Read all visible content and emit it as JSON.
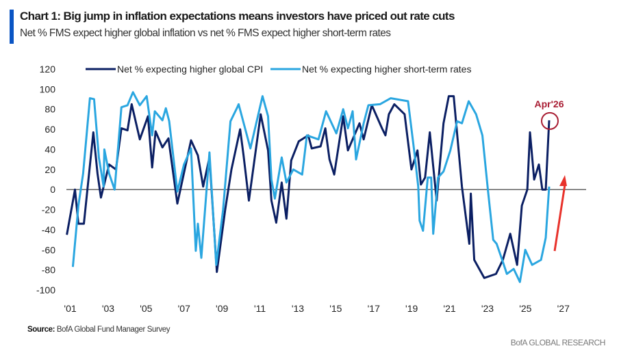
{
  "header": {
    "title": "Chart 1: Big jump in inflation expectations means investors have priced out rate cuts",
    "subtitle": "Net % FMS expect higher global inflation vs net % FMS expect higher short-term rates"
  },
  "footer": {
    "source_label": "Source:",
    "source_text": " BofA Global Fund Manager Survey",
    "brand": "BofA GLOBAL RESEARCH"
  },
  "chart_data": {
    "type": "line",
    "title": "Chart 1: Big jump in inflation expectations means investors have priced out rate cuts",
    "subtitle": "Net % FMS expect higher global inflation vs net % FMS expect higher short-term rates",
    "xlabel": "",
    "ylabel": "",
    "xlim": [
      2000.8,
      2028.2
    ],
    "ylim": [
      -100,
      120
    ],
    "yticks": [
      120,
      100,
      80,
      60,
      40,
      20,
      0,
      -20,
      -40,
      -60,
      -80,
      -100
    ],
    "xticks": [
      {
        "value": 2001,
        "label": "'01"
      },
      {
        "value": 2003,
        "label": "'03"
      },
      {
        "value": 2005,
        "label": "'05"
      },
      {
        "value": 2007,
        "label": "'07"
      },
      {
        "value": 2009,
        "label": "'09"
      },
      {
        "value": 2011,
        "label": "'11"
      },
      {
        "value": 2013,
        "label": "'13"
      },
      {
        "value": 2015,
        "label": "'15"
      },
      {
        "value": 2017,
        "label": "'17"
      },
      {
        "value": 2019,
        "label": "'19"
      },
      {
        "value": 2021,
        "label": "'21"
      },
      {
        "value": 2023,
        "label": "'23"
      },
      {
        "value": 2025,
        "label": "'25"
      },
      {
        "value": 2027,
        "label": "'27"
      }
    ],
    "grid": false,
    "zero_line": true,
    "legend_placement": "top",
    "series": [
      {
        "name": "Net % expecting higher global CPI",
        "color": "#0b1f63",
        "points": [
          [
            2000.82,
            -45
          ],
          [
            2001.25,
            0
          ],
          [
            2001.43,
            -34
          ],
          [
            2001.72,
            -34
          ],
          [
            2002.22,
            57
          ],
          [
            2002.44,
            16
          ],
          [
            2002.62,
            -8
          ],
          [
            2003.05,
            25
          ],
          [
            2003.41,
            20
          ],
          [
            2003.7,
            61
          ],
          [
            2004.02,
            59
          ],
          [
            2004.24,
            85
          ],
          [
            2004.67,
            50
          ],
          [
            2005.1,
            73
          ],
          [
            2005.32,
            22
          ],
          [
            2005.5,
            58
          ],
          [
            2005.86,
            42
          ],
          [
            2006.18,
            51
          ],
          [
            2006.65,
            -14
          ],
          [
            2007.37,
            49
          ],
          [
            2007.73,
            34
          ],
          [
            2008.01,
            3
          ],
          [
            2008.34,
            32
          ],
          [
            2008.73,
            -82
          ],
          [
            2009.17,
            -20
          ],
          [
            2009.5,
            20
          ],
          [
            2009.96,
            60
          ],
          [
            2010.14,
            34
          ],
          [
            2010.42,
            -11
          ],
          [
            2011.04,
            75
          ],
          [
            2011.43,
            39
          ],
          [
            2011.61,
            -11
          ],
          [
            2011.86,
            -33
          ],
          [
            2012.15,
            7
          ],
          [
            2012.4,
            -29
          ],
          [
            2012.65,
            29
          ],
          [
            2013.05,
            48
          ],
          [
            2013.55,
            54
          ],
          [
            2013.73,
            41
          ],
          [
            2014.2,
            43
          ],
          [
            2014.45,
            61
          ],
          [
            2014.67,
            30
          ],
          [
            2014.92,
            15
          ],
          [
            2015.39,
            73
          ],
          [
            2015.64,
            39
          ],
          [
            2016.25,
            66
          ],
          [
            2016.47,
            50
          ],
          [
            2016.9,
            84
          ],
          [
            2017.44,
            61
          ],
          [
            2017.62,
            54
          ],
          [
            2017.8,
            75
          ],
          [
            2018.09,
            85
          ],
          [
            2018.63,
            75
          ],
          [
            2018.99,
            20
          ],
          [
            2019.31,
            39
          ],
          [
            2019.49,
            5
          ],
          [
            2019.71,
            12
          ],
          [
            2019.96,
            57
          ],
          [
            2020.32,
            -11
          ],
          [
            2020.68,
            66
          ],
          [
            2020.96,
            93
          ],
          [
            2021.22,
            93
          ],
          [
            2021.65,
            3
          ],
          [
            2022.04,
            -54
          ],
          [
            2022.12,
            -4
          ],
          [
            2022.3,
            -70
          ],
          [
            2022.83,
            -88
          ],
          [
            2023.45,
            -84
          ],
          [
            2023.81,
            -70
          ],
          [
            2024.2,
            -44
          ],
          [
            2024.56,
            -75
          ],
          [
            2024.81,
            -16
          ],
          [
            2025.1,
            0
          ],
          [
            2025.24,
            57
          ],
          [
            2025.46,
            10
          ],
          [
            2025.71,
            25
          ],
          [
            2025.89,
            0
          ],
          [
            2026.07,
            0
          ],
          [
            2026.25,
            69
          ]
        ]
      },
      {
        "name": "Net % expecting higher short-term rates",
        "color": "#2aa6e0",
        "points": [
          [
            2001.14,
            -77
          ],
          [
            2001.43,
            -16
          ],
          [
            2001.68,
            16
          ],
          [
            2002.04,
            91
          ],
          [
            2002.26,
            90
          ],
          [
            2002.51,
            32
          ],
          [
            2002.76,
            3
          ],
          [
            2002.8,
            40
          ],
          [
            2003.05,
            16
          ],
          [
            2003.34,
            0
          ],
          [
            2003.7,
            82
          ],
          [
            2004.02,
            84
          ],
          [
            2004.31,
            97
          ],
          [
            2004.67,
            84
          ],
          [
            2005.03,
            93
          ],
          [
            2005.32,
            54
          ],
          [
            2005.46,
            78
          ],
          [
            2005.86,
            69
          ],
          [
            2006.04,
            81
          ],
          [
            2006.22,
            68
          ],
          [
            2006.65,
            -2
          ],
          [
            2007.0,
            25
          ],
          [
            2007.37,
            41
          ],
          [
            2007.62,
            -61
          ],
          [
            2007.73,
            -34
          ],
          [
            2007.91,
            -68
          ],
          [
            2008.34,
            37
          ],
          [
            2008.7,
            -75
          ],
          [
            2009.06,
            -20
          ],
          [
            2009.45,
            68
          ],
          [
            2009.81,
            82
          ],
          [
            2009.88,
            85
          ],
          [
            2010.5,
            41
          ],
          [
            2011.14,
            93
          ],
          [
            2011.43,
            73
          ],
          [
            2011.61,
            10
          ],
          [
            2011.79,
            -9
          ],
          [
            2012.15,
            32
          ],
          [
            2012.4,
            7
          ],
          [
            2012.76,
            20
          ],
          [
            2013.23,
            15
          ],
          [
            2013.48,
            54
          ],
          [
            2014.09,
            50
          ],
          [
            2014.49,
            78
          ],
          [
            2015.03,
            56
          ],
          [
            2015.39,
            80
          ],
          [
            2015.64,
            61
          ],
          [
            2015.89,
            78
          ],
          [
            2016.07,
            30
          ],
          [
            2016.47,
            66
          ],
          [
            2016.72,
            84
          ],
          [
            2017.33,
            85
          ],
          [
            2017.9,
            91
          ],
          [
            2018.81,
            88
          ],
          [
            2019.13,
            39
          ],
          [
            2019.35,
            3
          ],
          [
            2019.42,
            -31
          ],
          [
            2019.6,
            -41
          ],
          [
            2019.85,
            12
          ],
          [
            2020.03,
            12
          ],
          [
            2020.14,
            -44
          ],
          [
            2020.39,
            12
          ],
          [
            2020.68,
            18
          ],
          [
            2021.04,
            39
          ],
          [
            2021.4,
            68
          ],
          [
            2021.65,
            66
          ],
          [
            2022.01,
            88
          ],
          [
            2022.4,
            75
          ],
          [
            2022.73,
            54
          ],
          [
            2023.02,
            0
          ],
          [
            2023.3,
            -50
          ],
          [
            2023.48,
            -54
          ],
          [
            2023.81,
            -72
          ],
          [
            2024.02,
            -84
          ],
          [
            2024.38,
            -79
          ],
          [
            2024.71,
            -92
          ],
          [
            2024.99,
            -60
          ],
          [
            2025.35,
            -75
          ],
          [
            2025.82,
            -70
          ],
          [
            2026.07,
            -48
          ],
          [
            2026.25,
            3
          ]
        ]
      }
    ],
    "annotations": [
      {
        "text": "Apr'26",
        "x": 2026.25,
        "y": 69,
        "color": "#a81c32",
        "marker": "circle"
      },
      {
        "text": "",
        "type": "arrow",
        "direction": "up",
        "color": "#e8322b"
      }
    ]
  }
}
